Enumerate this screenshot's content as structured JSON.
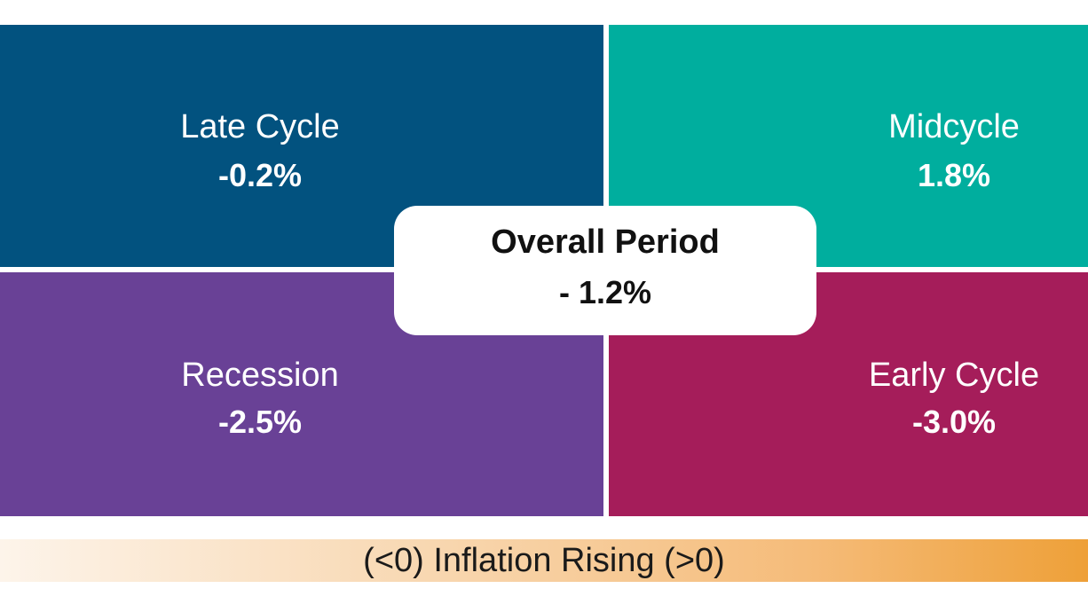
{
  "quadrants": {
    "late_cycle": {
      "label": "Late Cycle",
      "value": "-0.2%",
      "color": "#02527f"
    },
    "midcycle": {
      "label": "Midcycle",
      "value": "1.8%",
      "color": "#00ae9e"
    },
    "recession": {
      "label": "Recession",
      "value": "-2.5%",
      "color": "#694196"
    },
    "early_cycle": {
      "label": "Early Cycle",
      "value": "-3.0%",
      "color": "#a51d5a"
    }
  },
  "overall": {
    "title": "Overall Period",
    "value": "- 1.2%"
  },
  "inflation_axis": {
    "label": "(<0) Inflation Rising (>0)",
    "gradient_start": "#fdf4ea",
    "gradient_end": "#eea038"
  }
}
